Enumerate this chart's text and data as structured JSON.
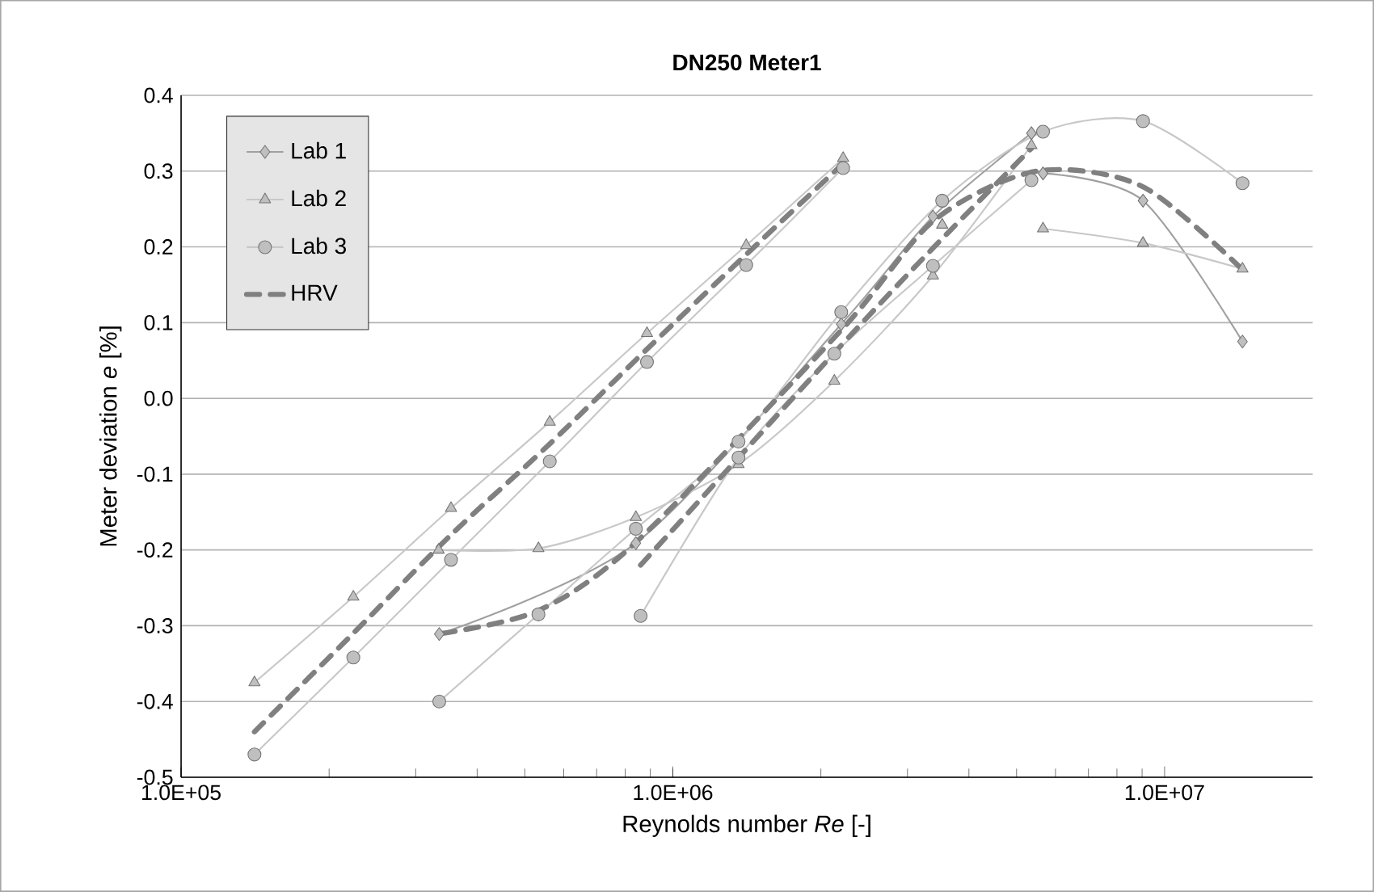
{
  "chart_data": {
    "type": "line",
    "title": "DN250 Meter1",
    "xlabel": "Reynolds number *Re*  [-]",
    "ylabel": "Meter deviation *e*  [%]",
    "log": "x",
    "grid": "y",
    "legend": "top left",
    "xlim": [
      100000,
      20000000
    ],
    "xticks": [
      {
        "value": 100000,
        "label": "1.0E+05"
      },
      {
        "value": 1000000,
        "label": "1.0E+06"
      },
      {
        "value": 10000000,
        "label": "1.0E+07"
      }
    ],
    "ylim": [
      -0.5,
      0.4
    ],
    "yticks": [
      -0.5,
      -0.4,
      -0.3,
      -0.2,
      -0.1,
      {
        "value": 0,
        "label": "0.0"
      },
      0.1,
      0.2,
      0.3,
      0.4
    ],
    "series": [
      {
        "name": "Lab 1",
        "color": "#a0a0a0",
        "marker": "diamond",
        "line_style": "solid",
        "x": [
          335000,
          841000,
          2200000,
          3380000,
          5360000,
          null,
          5660000,
          9040000,
          14400000
        ],
        "values": [
          -0.311,
          -0.191,
          0.098,
          0.24,
          0.35,
          null,
          0.297,
          0.261,
          0.075
        ]
      },
      {
        "name": "Lab 2",
        "color": "#c8c8c8",
        "marker": "triangle",
        "line_style": "solid",
        "x": [
          141000,
          224000,
          354000,
          562000,
          886000,
          1410000,
          2220000,
          null,
          334000,
          533000,
          841000,
          1360000,
          2130000,
          3380000,
          5360000,
          null,
          3530000,
          null,
          5660000,
          9040000,
          14400000
        ],
        "values": [
          -0.375,
          -0.262,
          -0.145,
          -0.031,
          0.086,
          0.202,
          0.317,
          null,
          -0.2,
          -0.198,
          -0.157,
          -0.087,
          0.023,
          0.162,
          0.334,
          null,
          0.229,
          null,
          0.224,
          0.205,
          0.171
        ]
      },
      {
        "name": "Lab 3",
        "color": "#c8c8c8",
        "marker": "circle",
        "line_style": "solid",
        "x": [
          141000,
          224000,
          354000,
          562000,
          886000,
          1410000,
          2220000,
          null,
          335000,
          533000,
          841000,
          1360000,
          2200000,
          3530000,
          5660000,
          9040000,
          14400000,
          null,
          860000,
          1360000,
          2130000,
          3380000,
          5360000
        ],
        "values": [
          -0.47,
          -0.342,
          -0.213,
          -0.083,
          0.048,
          0.176,
          0.304,
          null,
          -0.4,
          -0.285,
          -0.172,
          -0.057,
          0.114,
          0.261,
          0.352,
          0.366,
          0.284,
          null,
          -0.287,
          -0.078,
          0.059,
          0.175,
          0.288
        ]
      },
      {
        "name": "HRV",
        "color": "#808080",
        "marker": "none",
        "line_style": "dashed",
        "x": [
          141000,
          224000,
          354000,
          562000,
          886000,
          1410000,
          2220000,
          null,
          340000,
          533000,
          841000,
          2200000,
          3400000,
          5500000,
          9000000,
          14400000,
          null,
          860000,
          2200000,
          3400000,
          5360000
        ],
        "values": [
          -0.44,
          -0.31,
          -0.18,
          -0.06,
          0.065,
          0.19,
          0.31,
          null,
          -0.31,
          -0.28,
          -0.19,
          0.09,
          0.235,
          0.3,
          0.28,
          0.17,
          null,
          -0.22,
          0.07,
          0.2,
          0.33
        ]
      }
    ]
  }
}
